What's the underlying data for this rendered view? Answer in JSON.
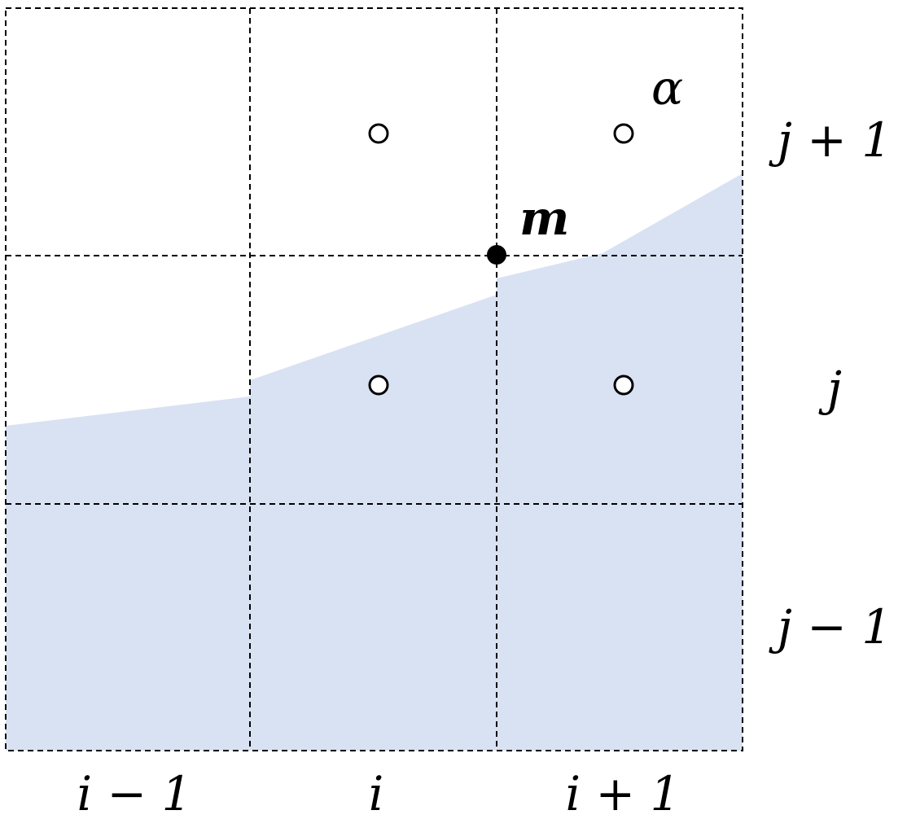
{
  "fill_color": "#d9e2f3",
  "column_labels": [
    "i − 1",
    "i",
    "i + 1"
  ],
  "row_labels": [
    "j + 1",
    "j",
    "j − 1"
  ],
  "point_label": "m",
  "corner_label": "α"
}
